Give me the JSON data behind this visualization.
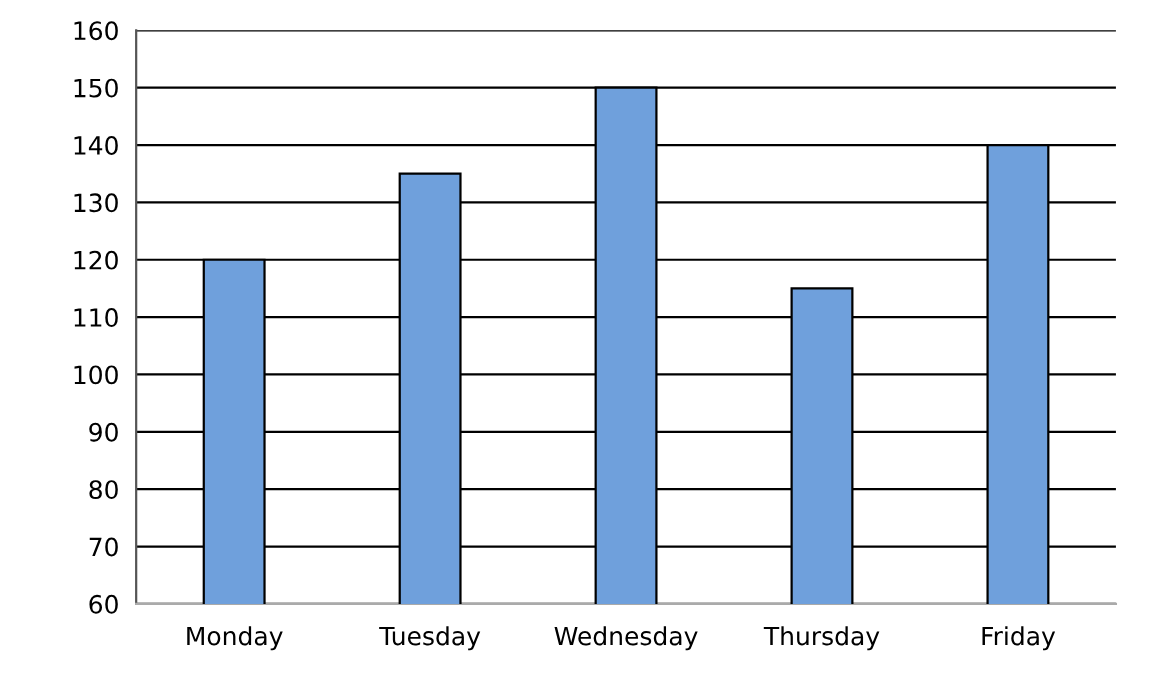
{
  "chart_data": {
    "type": "bar",
    "categories": [
      "Monday",
      "Tuesday",
      "Wednesday",
      "Thursday",
      "Friday"
    ],
    "values": [
      120,
      135,
      150,
      115,
      140
    ],
    "color": "#6fa0dc",
    "ylim": [
      60,
      160
    ],
    "yticks": [
      60,
      70,
      80,
      90,
      100,
      110,
      120,
      130,
      140,
      150,
      160
    ],
    "grid": "y",
    "legend": false
  }
}
